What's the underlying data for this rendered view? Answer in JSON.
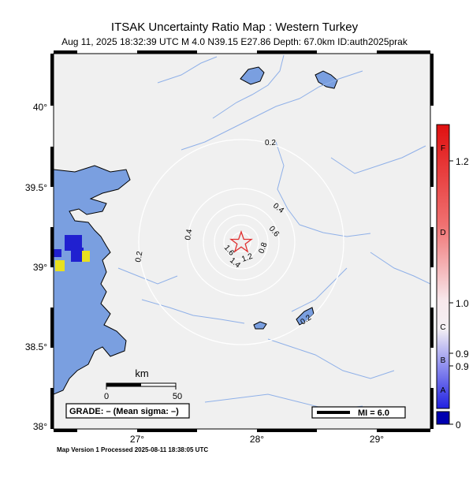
{
  "header": {
    "title": "ITSAK Uncertainty Ratio Map : Western Turkey",
    "subtitle": "Aug 11, 2025 18:32:39 UTC    M 4.0    N39.15 E27.86    Depth: 67.0km    ID:auth2025prak"
  },
  "map": {
    "lat_labels": [
      "40°",
      "39.5°",
      "39°",
      "38.5°",
      "38°"
    ],
    "lon_labels": [
      "27°",
      "28°",
      "29°"
    ],
    "contour_labels": [
      "0.2",
      "0.4",
      "0.6",
      "0.8",
      "1.2",
      "1.4",
      "1.6",
      "0.4",
      "0.2",
      "0.2"
    ],
    "scalebar": {
      "label": "km",
      "zero": "0",
      "max": "50"
    },
    "grade_label": "GRADE: – (Mean sigma: –)",
    "mi_label": "MI = 6.0",
    "epicenter": {
      "lat": 39.15,
      "lon": 27.86,
      "marker": "star-icon"
    },
    "colors": {
      "land": "#f0f0f0",
      "water": "#7a9fe0",
      "river": "#8fb0e8",
      "contour": "#ffffff",
      "epicenter": "#e03030"
    }
  },
  "colorbar": {
    "letters": [
      "F",
      "D",
      "C",
      "B",
      "A"
    ],
    "values": [
      "1.2",
      "1.0",
      "0.9",
      "0.9",
      "0"
    ],
    "colors": {
      "top": "#e01010",
      "mid": "#f4f0f4",
      "bottom": "#2020e0",
      "floor": "#0000b0"
    }
  },
  "footer": {
    "text": "Map Version 1 Processed 2025-08-11 18:38:05 UTC"
  }
}
